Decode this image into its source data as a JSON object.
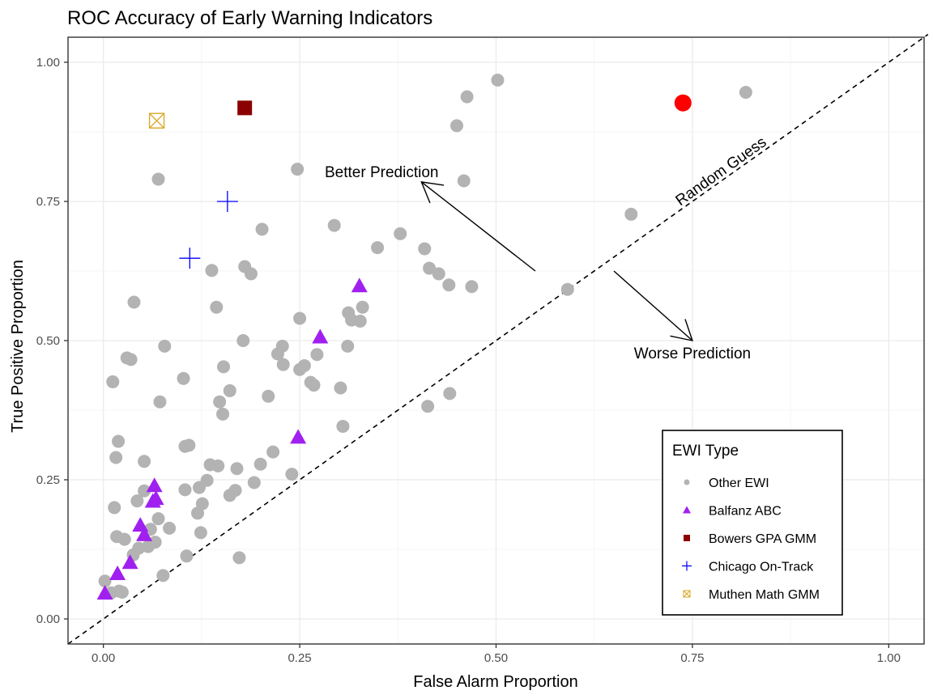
{
  "chart_data": {
    "type": "scatter",
    "title": "ROC Accuracy of Early Warning Indicators",
    "xlabel": "False Alarm Proportion",
    "ylabel": "True Positive Proportion",
    "xlim": [
      -0.045,
      1.045
    ],
    "ylim": [
      -0.045,
      1.045
    ],
    "x_ticks": [
      0.0,
      0.25,
      0.5,
      0.75,
      1.0
    ],
    "x_tick_labels": [
      "0.00",
      "0.25",
      "0.50",
      "0.75",
      "1.00"
    ],
    "y_ticks": [
      0.0,
      0.25,
      0.5,
      0.75,
      1.0
    ],
    "y_tick_labels": [
      "0.00",
      "0.25",
      "0.50",
      "0.75",
      "1.00"
    ],
    "grid": true,
    "legend": {
      "title": "EWI Type",
      "placement": "bottom-right",
      "entries": [
        "Other EWI",
        "Balfanz ABC",
        "Bowers GPA GMM",
        "Chicago On-Track",
        "Muthen Math GMM"
      ]
    },
    "reference_line": {
      "label": "Random Guess",
      "from": [
        0,
        0
      ],
      "to": [
        1.05,
        1.05
      ],
      "style": "dashed"
    },
    "annotations": [
      {
        "text": "Better Prediction",
        "x": 0.36,
        "y": 0.805,
        "arrow_from": [
          0.55,
          0.625
        ],
        "arrow_to": [
          0.405,
          0.785
        ]
      },
      {
        "text": "Worse Prediction",
        "x": 0.75,
        "y": 0.48,
        "arrow_from": [
          0.65,
          0.625
        ],
        "arrow_to": [
          0.75,
          0.5
        ]
      }
    ],
    "highlight_point": {
      "x": 0.738,
      "y": 0.927,
      "color": "#ff0000"
    },
    "series": [
      {
        "name": "Other EWI",
        "color": "#b3b3b3",
        "shape": "circle",
        "points": [
          [
            0.002,
            0.068
          ],
          [
            0.01,
            0.047
          ],
          [
            0.02,
            0.05
          ],
          [
            0.024,
            0.048
          ],
          [
            0.017,
            0.148
          ],
          [
            0.027,
            0.143
          ],
          [
            0.038,
            0.115
          ],
          [
            0.045,
            0.127
          ],
          [
            0.057,
            0.13
          ],
          [
            0.06,
            0.161
          ],
          [
            0.066,
            0.138
          ],
          [
            0.07,
            0.18
          ],
          [
            0.076,
            0.078
          ],
          [
            0.084,
            0.163
          ],
          [
            0.106,
            0.113
          ],
          [
            0.014,
            0.2
          ],
          [
            0.043,
            0.212
          ],
          [
            0.052,
            0.23
          ],
          [
            0.052,
            0.283
          ],
          [
            0.016,
            0.29
          ],
          [
            0.019,
            0.319
          ],
          [
            0.012,
            0.426
          ],
          [
            0.03,
            0.469
          ],
          [
            0.035,
            0.466
          ],
          [
            0.039,
            0.569
          ],
          [
            0.07,
            0.79
          ],
          [
            0.072,
            0.39
          ],
          [
            0.078,
            0.49
          ],
          [
            0.102,
            0.432
          ],
          [
            0.104,
            0.31
          ],
          [
            0.109,
            0.312
          ],
          [
            0.104,
            0.232
          ],
          [
            0.12,
            0.19
          ],
          [
            0.124,
            0.155
          ],
          [
            0.126,
            0.207
          ],
          [
            0.122,
            0.236
          ],
          [
            0.132,
            0.249
          ],
          [
            0.136,
            0.277
          ],
          [
            0.146,
            0.275
          ],
          [
            0.138,
            0.626
          ],
          [
            0.144,
            0.56
          ],
          [
            0.148,
            0.39
          ],
          [
            0.152,
            0.368
          ],
          [
            0.153,
            0.453
          ],
          [
            0.161,
            0.41
          ],
          [
            0.161,
            0.222
          ],
          [
            0.168,
            0.231
          ],
          [
            0.17,
            0.27
          ],
          [
            0.173,
            0.11
          ],
          [
            0.178,
            0.5
          ],
          [
            0.18,
            0.633
          ],
          [
            0.188,
            0.62
          ],
          [
            0.192,
            0.245
          ],
          [
            0.2,
            0.278
          ],
          [
            0.202,
            0.7
          ],
          [
            0.21,
            0.4
          ],
          [
            0.216,
            0.3
          ],
          [
            0.222,
            0.476
          ],
          [
            0.228,
            0.49
          ],
          [
            0.229,
            0.457
          ],
          [
            0.24,
            0.26
          ],
          [
            0.247,
            0.808
          ],
          [
            0.25,
            0.448
          ],
          [
            0.25,
            0.54
          ],
          [
            0.256,
            0.455
          ],
          [
            0.264,
            0.425
          ],
          [
            0.268,
            0.42
          ],
          [
            0.272,
            0.475
          ],
          [
            0.294,
            0.707
          ],
          [
            0.302,
            0.415
          ],
          [
            0.305,
            0.346
          ],
          [
            0.311,
            0.49
          ],
          [
            0.312,
            0.55
          ],
          [
            0.316,
            0.537
          ],
          [
            0.327,
            0.535
          ],
          [
            0.33,
            0.56
          ],
          [
            0.349,
            0.667
          ],
          [
            0.378,
            0.692
          ],
          [
            0.409,
            0.665
          ],
          [
            0.413,
            0.382
          ],
          [
            0.415,
            0.63
          ],
          [
            0.427,
            0.62
          ],
          [
            0.44,
            0.6
          ],
          [
            0.441,
            0.405
          ],
          [
            0.45,
            0.886
          ],
          [
            0.459,
            0.787
          ],
          [
            0.463,
            0.938
          ],
          [
            0.469,
            0.597
          ],
          [
            0.502,
            0.968
          ],
          [
            0.591,
            0.592
          ],
          [
            0.672,
            0.727
          ],
          [
            0.818,
            0.946
          ]
        ]
      },
      {
        "name": "Balfanz ABC",
        "color": "#a020f0",
        "shape": "triangle",
        "points": [
          [
            0.002,
            0.045
          ],
          [
            0.018,
            0.08
          ],
          [
            0.034,
            0.1
          ],
          [
            0.047,
            0.167
          ],
          [
            0.052,
            0.15
          ],
          [
            0.063,
            0.21
          ],
          [
            0.067,
            0.215
          ],
          [
            0.065,
            0.238
          ],
          [
            0.248,
            0.325
          ],
          [
            0.276,
            0.505
          ],
          [
            0.326,
            0.597
          ]
        ]
      },
      {
        "name": "Bowers GPA GMM",
        "color": "#8b0000",
        "shape": "square",
        "points": [
          [
            0.18,
            0.918
          ]
        ]
      },
      {
        "name": "Chicago On-Track",
        "color": "#0000ff",
        "shape": "plus",
        "points": [
          [
            0.11,
            0.648
          ],
          [
            0.158,
            0.75
          ]
        ]
      },
      {
        "name": "Muthen Math GMM",
        "color": "#daa520",
        "shape": "square-cross",
        "points": [
          [
            0.068,
            0.895
          ]
        ]
      }
    ]
  }
}
